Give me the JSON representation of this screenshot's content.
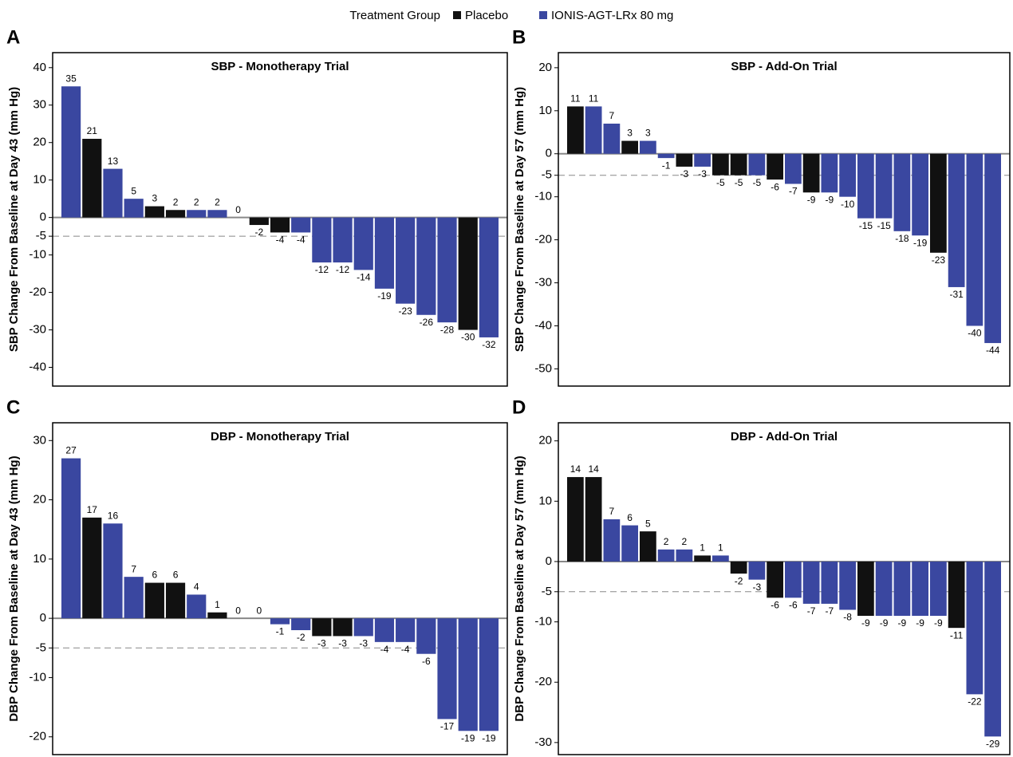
{
  "legend_title": "Treatment Group",
  "chart_data": [
    {
      "type": "bar",
      "panel": "A",
      "title": "SBP - Monotherapy Trial",
      "y_label": "SBP Change From Baseline at Day 43 (mm Hg)",
      "ylim": [
        -45,
        44
      ],
      "yticks": [
        40,
        30,
        20,
        10,
        0,
        -5,
        -10,
        -20,
        -30,
        -40
      ],
      "reference_line": -5,
      "series": [
        {
          "name": "Placebo",
          "color": "#111111",
          "values": [
            null,
            21,
            null,
            null,
            3,
            2,
            null,
            null,
            null,
            -2,
            -4,
            null,
            null,
            null,
            null,
            null,
            null,
            null,
            null,
            -30,
            null
          ]
        },
        {
          "name": "IONIS-AGT-LRx 80 mg",
          "color": "#3a47a0",
          "values": [
            35,
            null,
            13,
            5,
            null,
            null,
            2,
            2,
            0,
            null,
            null,
            -4,
            -12,
            -12,
            -14,
            -19,
            -23,
            -26,
            -28,
            null,
            -32
          ]
        }
      ]
    },
    {
      "type": "bar",
      "panel": "B",
      "title": "SBP - Add-On Trial",
      "y_label": "SBP Change From Baseline at Day 57 (mm Hg)",
      "ylim": [
        -54,
        23.5
      ],
      "yticks": [
        20,
        10,
        0,
        -5,
        -10,
        -20,
        -30,
        -40,
        -50
      ],
      "reference_line": -5,
      "series": [
        {
          "name": "Placebo",
          "color": "#111111",
          "values": [
            11,
            null,
            null,
            3,
            null,
            null,
            -3,
            null,
            -5,
            -5,
            null,
            -6,
            null,
            -9,
            null,
            null,
            null,
            null,
            null,
            null,
            -23,
            null,
            null,
            null
          ]
        },
        {
          "name": "IONIS-AGT-LRx 80 mg",
          "color": "#3a47a0",
          "values": [
            null,
            11,
            7,
            null,
            3,
            -1,
            null,
            -3,
            null,
            null,
            -5,
            null,
            -7,
            null,
            -9,
            -10,
            -15,
            -15,
            -18,
            -19,
            null,
            -31,
            -40,
            -44
          ]
        }
      ]
    },
    {
      "type": "bar",
      "panel": "C",
      "title": "DBP - Monotherapy Trial",
      "y_label": "DBP Change From Baseline at Day 43 (mm Hg)",
      "ylim": [
        -23,
        33
      ],
      "yticks": [
        30,
        20,
        10,
        0,
        -5,
        -10,
        -20
      ],
      "reference_line": -5,
      "series": [
        {
          "name": "Placebo",
          "color": "#111111",
          "values": [
            null,
            17,
            null,
            null,
            6,
            6,
            null,
            1,
            null,
            null,
            null,
            null,
            -3,
            -3,
            null,
            null,
            null,
            null,
            null,
            null,
            null
          ]
        },
        {
          "name": "IONIS-AGT-LRx 80 mg",
          "color": "#3a47a0",
          "values": [
            27,
            null,
            16,
            7,
            null,
            null,
            4,
            null,
            0,
            0,
            -1,
            -2,
            null,
            null,
            -3,
            -4,
            -4,
            -6,
            -17,
            -19,
            -19
          ]
        }
      ]
    },
    {
      "type": "bar",
      "panel": "D",
      "title": "DBP - Add-On Trial",
      "y_label": "DBP Change From Baseline at Day 57 (mm Hg)",
      "ylim": [
        -32,
        23
      ],
      "yticks": [
        20,
        10,
        0,
        -5,
        -10,
        -20,
        -30
      ],
      "reference_line": -5,
      "series": [
        {
          "name": "Placebo",
          "color": "#111111",
          "values": [
            14,
            14,
            null,
            null,
            5,
            null,
            null,
            1,
            null,
            -2,
            null,
            -6,
            null,
            null,
            null,
            null,
            -9,
            null,
            null,
            null,
            null,
            -11,
            null,
            null
          ]
        },
        {
          "name": "IONIS-AGT-LRx 80 mg",
          "color": "#3a47a0",
          "values": [
            null,
            null,
            7,
            6,
            null,
            2,
            2,
            null,
            1,
            null,
            -3,
            null,
            -6,
            -7,
            -7,
            -8,
            null,
            -9,
            -9,
            -9,
            -9,
            null,
            -22,
            -29
          ]
        }
      ]
    }
  ]
}
